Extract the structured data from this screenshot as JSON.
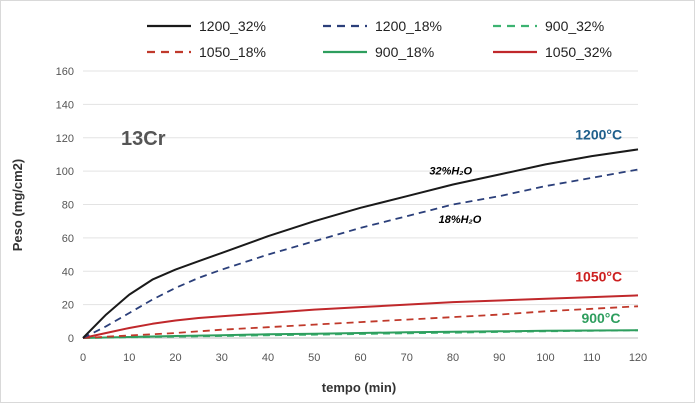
{
  "chart_data": {
    "type": "line",
    "title": "",
    "panel_label": "13Cr",
    "xlabel": "tempo (min)",
    "ylabel": "Peso (mg/cm2)",
    "xlim": [
      0,
      120
    ],
    "ylim": [
      0,
      160
    ],
    "xticks": [
      0,
      10,
      20,
      30,
      40,
      50,
      60,
      70,
      80,
      90,
      100,
      110,
      120
    ],
    "yticks": [
      0,
      20,
      40,
      60,
      80,
      100,
      120,
      140,
      160
    ],
    "grid": "horizontal",
    "legend_position": "top",
    "series": [
      {
        "name": "1200_32%",
        "color": "#1a1a1a",
        "dash": "solid",
        "x": [
          0,
          5,
          10,
          15,
          20,
          25,
          30,
          40,
          50,
          60,
          70,
          80,
          90,
          100,
          110,
          120
        ],
        "y": [
          0,
          14,
          26,
          35,
          41,
          46,
          51,
          61,
          70,
          78,
          85,
          92,
          98,
          104,
          109,
          113
        ]
      },
      {
        "name": "1200_18%",
        "color": "#2b3f7a",
        "dash": "dashed",
        "x": [
          0,
          5,
          10,
          15,
          20,
          25,
          30,
          40,
          50,
          60,
          70,
          80,
          90,
          100,
          110,
          120
        ],
        "y": [
          0,
          7,
          15,
          23,
          30,
          36,
          41,
          50,
          58,
          66,
          73,
          80,
          85,
          91,
          96,
          101
        ]
      },
      {
        "name": "900_32%",
        "color": "#3cb371",
        "dash": "dashed",
        "x": [
          0,
          10,
          20,
          30,
          40,
          50,
          60,
          70,
          80,
          90,
          100,
          110,
          120
        ],
        "y": [
          0,
          0.4,
          0.8,
          1.2,
          1.6,
          2,
          2.4,
          2.8,
          3.2,
          3.6,
          4,
          4.3,
          4.6
        ]
      },
      {
        "name": "1050_18%",
        "color": "#c0392b",
        "dash": "dashed",
        "x": [
          0,
          10,
          20,
          30,
          40,
          50,
          60,
          70,
          80,
          90,
          100,
          110,
          120
        ],
        "y": [
          0,
          1.5,
          3,
          5,
          6.5,
          8,
          9.5,
          11,
          12.5,
          14,
          16,
          17.5,
          19
        ]
      },
      {
        "name": "900_18%",
        "color": "#2e9e5e",
        "dash": "solid",
        "x": [
          0,
          10,
          20,
          30,
          40,
          50,
          60,
          70,
          80,
          90,
          100,
          110,
          120
        ],
        "y": [
          0,
          0.6,
          1.2,
          1.7,
          2.2,
          2.6,
          3,
          3.4,
          3.7,
          4,
          4.3,
          4.5,
          4.7
        ]
      },
      {
        "name": "1050_32%",
        "color": "#c0282b",
        "dash": "solid",
        "x": [
          0,
          5,
          10,
          15,
          20,
          25,
          30,
          40,
          50,
          60,
          70,
          80,
          90,
          100,
          110,
          120
        ],
        "y": [
          0,
          3,
          6,
          8.5,
          10.5,
          12,
          13,
          15,
          17,
          18.5,
          20,
          21.5,
          22.5,
          23.5,
          24.5,
          25.5
        ]
      }
    ],
    "annotations": [
      {
        "text": "1200°C",
        "color": "#1f5f8b",
        "x": 111.5,
        "y": 119
      },
      {
        "text": "1050°C",
        "color": "#cc1f1f",
        "x": 111.5,
        "y": 34
      },
      {
        "text": "900°C",
        "color": "#2e9e5e",
        "x": 112,
        "y": 9
      },
      {
        "text": "32%H₂O",
        "color": "#000000",
        "x": 79.5,
        "y": 98
      },
      {
        "text": "18%H₂O",
        "color": "#000000",
        "x": 81.5,
        "y": 69
      }
    ]
  }
}
